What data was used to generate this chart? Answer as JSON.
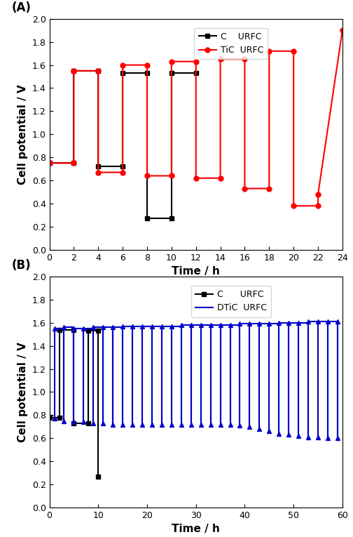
{
  "panel_A": {
    "title": "(A)",
    "xlabel": "Time / h",
    "ylabel": "Cell potential / V",
    "xlim": [
      0,
      24
    ],
    "ylim": [
      0.0,
      2.0
    ],
    "xticks": [
      0,
      2,
      4,
      6,
      8,
      10,
      12,
      14,
      16,
      18,
      20,
      22,
      24
    ],
    "yticks": [
      0.0,
      0.2,
      0.4,
      0.6,
      0.8,
      1.0,
      1.2,
      1.4,
      1.6,
      1.8,
      2.0
    ],
    "C_x": [
      0,
      2,
      2,
      4,
      4,
      6,
      6,
      8,
      8,
      10,
      10,
      12
    ],
    "C_y": [
      0.75,
      0.75,
      1.55,
      1.55,
      0.72,
      0.72,
      1.53,
      1.53,
      0.27,
      0.27,
      1.53,
      1.53
    ],
    "TiC_x": [
      0,
      2,
      2,
      4,
      4,
      6,
      6,
      8,
      8,
      10,
      10,
      12,
      12,
      14,
      14,
      16,
      16,
      18,
      18,
      20,
      20,
      22,
      22,
      24
    ],
    "TiC_y": [
      0.75,
      0.75,
      1.55,
      1.55,
      0.67,
      0.67,
      1.6,
      1.6,
      0.64,
      0.64,
      1.63,
      1.63,
      0.62,
      0.62,
      1.65,
      1.65,
      0.53,
      0.53,
      1.72,
      1.72,
      0.38,
      0.38,
      0.48,
      1.9
    ],
    "C_color": "#000000",
    "TiC_color": "#ff0000",
    "C_label": "C    URFC",
    "TiC_label": "TiC  URFC",
    "C_marker": "s",
    "TiC_marker": "o"
  },
  "panel_B": {
    "title": "(B)",
    "xlabel": "Time / h",
    "ylabel": "Cell potential / V",
    "xlim": [
      0,
      60
    ],
    "ylim": [
      0.0,
      2.0
    ],
    "xticks": [
      0,
      10,
      20,
      30,
      40,
      50,
      60
    ],
    "yticks": [
      0.0,
      0.2,
      0.4,
      0.6,
      0.8,
      1.0,
      1.2,
      1.4,
      1.6,
      1.8,
      2.0
    ],
    "C_x": [
      0,
      2,
      2,
      5,
      5,
      8,
      8,
      10,
      10
    ],
    "C_y": [
      0.78,
      0.78,
      1.54,
      1.54,
      0.73,
      0.73,
      1.53,
      1.53,
      0.27
    ],
    "C_color": "#000000",
    "DTiC_color": "#0000cc",
    "C_label": "C      URFC",
    "DTiC_label": "DTiC  URFC",
    "C_marker": "s",
    "DTiC_marker": "^",
    "DTiC_x": [
      1,
      1,
      3,
      3,
      5,
      5,
      7,
      7,
      9,
      9,
      11,
      11,
      13,
      13,
      15,
      15,
      17,
      17,
      19,
      19,
      21,
      21,
      23,
      23,
      25,
      25,
      27,
      27,
      29,
      29,
      31,
      31,
      33,
      33,
      35,
      35,
      37,
      37,
      39,
      39,
      41,
      41,
      43,
      43,
      45,
      45,
      47,
      47,
      49,
      49,
      51,
      51,
      53,
      53,
      55,
      55,
      57,
      57,
      59,
      59
    ],
    "DTiC_y": [
      0.77,
      1.55,
      0.75,
      1.56,
      0.74,
      1.55,
      0.74,
      1.55,
      0.73,
      1.56,
      0.73,
      1.56,
      0.72,
      1.56,
      0.72,
      1.57,
      0.72,
      1.57,
      0.72,
      1.57,
      0.72,
      1.57,
      0.72,
      1.57,
      0.72,
      1.57,
      0.72,
      1.58,
      0.72,
      1.58,
      0.72,
      1.58,
      0.72,
      1.58,
      0.72,
      1.58,
      0.72,
      1.58,
      0.71,
      1.59,
      0.7,
      1.59,
      0.68,
      1.59,
      0.66,
      1.59,
      0.64,
      1.6,
      0.63,
      1.6,
      0.62,
      1.6,
      0.61,
      1.61,
      0.61,
      1.61,
      0.6,
      1.61,
      0.6,
      1.61
    ]
  },
  "figsize": [
    5.04,
    7.65
  ],
  "dpi": 100
}
